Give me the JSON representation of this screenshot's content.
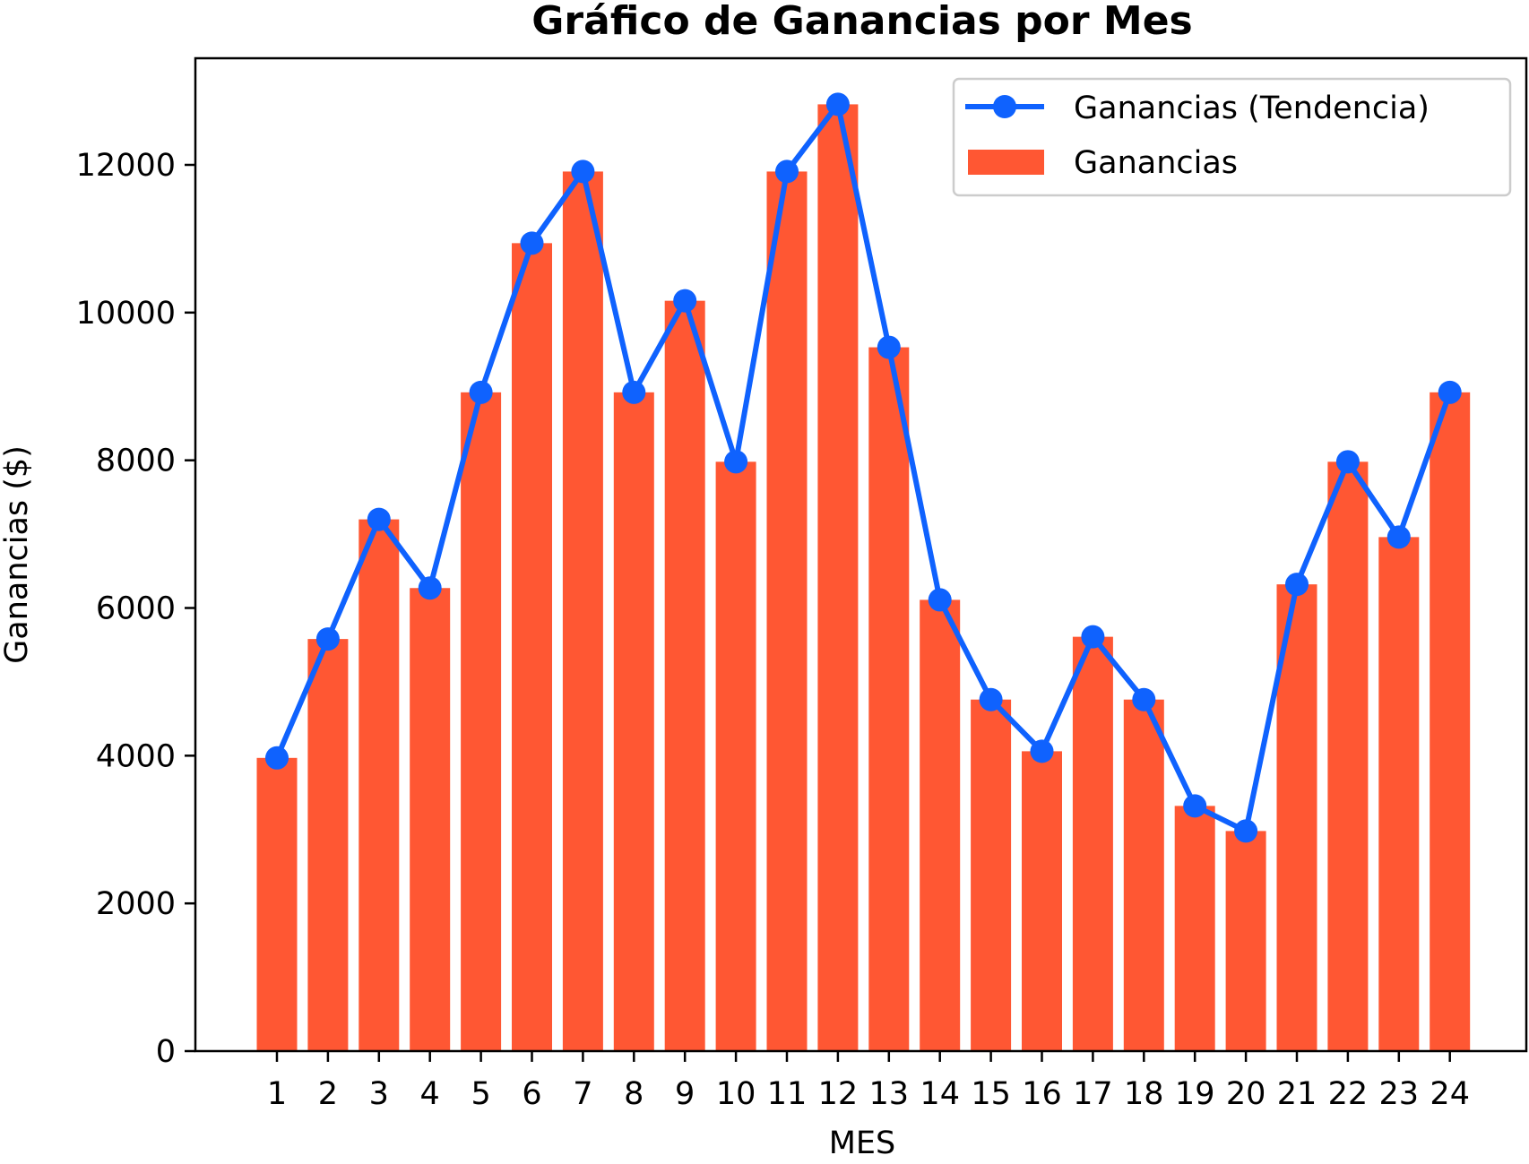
{
  "chart_data": {
    "type": "bar",
    "title": "Gráfico de Ganancias por Mes",
    "xlabel": "MES",
    "ylabel": "Ganancias ($)",
    "categories": [
      "1",
      "2",
      "3",
      "4",
      "5",
      "6",
      "7",
      "8",
      "9",
      "10",
      "11",
      "12",
      "13",
      "14",
      "15",
      "16",
      "17",
      "18",
      "19",
      "20",
      "21",
      "22",
      "23",
      "24"
    ],
    "ylim": [
      0,
      13500
    ],
    "yticks": [
      0,
      2000,
      4000,
      6000,
      8000,
      10000,
      12000
    ],
    "ytick_labels": [
      "0",
      "2000",
      "4000",
      "6000",
      "8000",
      "10000",
      "12000"
    ],
    "grid": false,
    "legend_position": "top-right",
    "series": [
      {
        "name": "Ganancias (Tendencia)",
        "type": "line",
        "marker": "circle",
        "color": "#0f62fe",
        "values": [
          3970,
          5580,
          7200,
          6270,
          8920,
          10940,
          11910,
          8920,
          10160,
          7980,
          11910,
          12820,
          9530,
          6110,
          4760,
          4060,
          5610,
          4760,
          3320,
          2980,
          6320,
          7980,
          6960,
          8920
        ]
      },
      {
        "name": "Ganancias",
        "type": "bar",
        "color": "#ff5733",
        "values": [
          3970,
          5580,
          7200,
          6270,
          8920,
          10940,
          11910,
          8920,
          10160,
          7980,
          11910,
          12820,
          9530,
          6110,
          4760,
          4060,
          5610,
          4760,
          3320,
          2980,
          6320,
          7980,
          6960,
          8920
        ]
      }
    ]
  }
}
